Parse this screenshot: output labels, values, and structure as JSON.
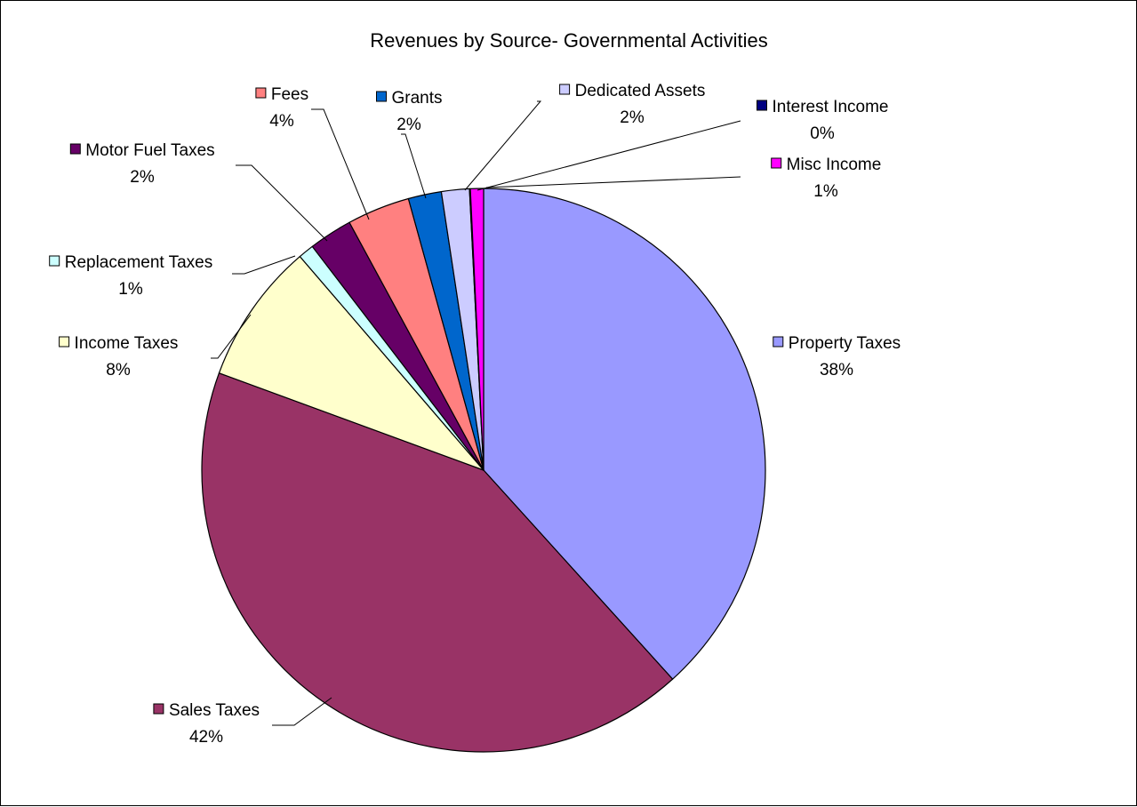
{
  "chart_data": {
    "type": "pie",
    "title": "Revenues by Source- Governmental Activities",
    "start_angle_deg": 0,
    "direction": "clockwise",
    "slices": [
      {
        "name": "Property Taxes",
        "pct_label": "38%",
        "value": 38.3,
        "color": "#9999ff"
      },
      {
        "name": "Sales Taxes",
        "pct_label": "42%",
        "value": 42.3,
        "color": "#993366"
      },
      {
        "name": "Income Taxes",
        "pct_label": "8%",
        "value": 8.1,
        "color": "#ffffcc"
      },
      {
        "name": "Replacement Taxes",
        "pct_label": "1%",
        "value": 0.9,
        "color": "#ccffff"
      },
      {
        "name": "Motor Fuel Taxes",
        "pct_label": "2%",
        "value": 2.5,
        "color": "#660066"
      },
      {
        "name": "Fees",
        "pct_label": "4%",
        "value": 3.6,
        "color": "#ff8080"
      },
      {
        "name": "Grants",
        "pct_label": "2%",
        "value": 1.9,
        "color": "#0066cc"
      },
      {
        "name": "Dedicated Assets",
        "pct_label": "2%",
        "value": 1.6,
        "color": "#ccccff"
      },
      {
        "name": "Interest Income",
        "pct_label": "0%",
        "value": 0.05,
        "color": "#000080"
      },
      {
        "name": "Misc Income",
        "pct_label": "1%",
        "value": 0.75,
        "color": "#ff00ff"
      }
    ]
  }
}
